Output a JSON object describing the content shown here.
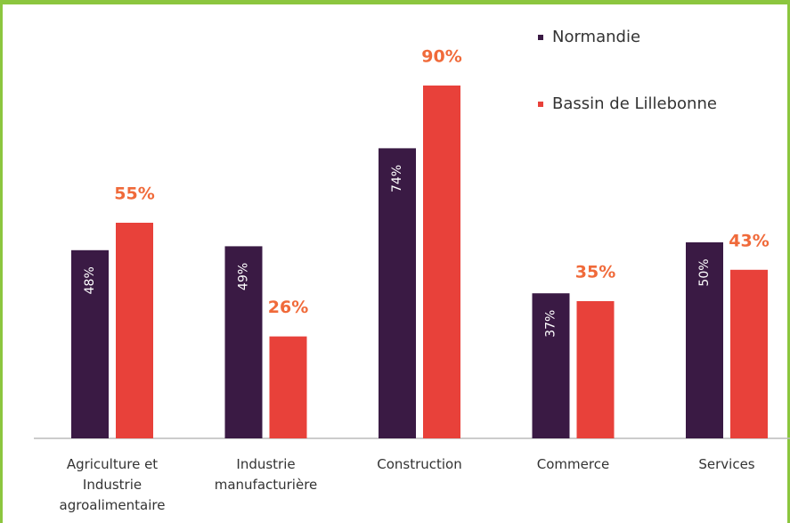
{
  "chart_data": {
    "type": "bar",
    "categories": [
      "Agriculture et Industrie agroalimentaire",
      "Industrie manufacturière",
      "Construction",
      "Commerce",
      "Services"
    ],
    "series": [
      {
        "name": "Normandie",
        "color": "#3a1a44",
        "values": [
          48,
          49,
          74,
          37,
          50
        ],
        "value_labels": [
          "48%",
          "49%",
          "74%",
          "37%",
          "50%"
        ]
      },
      {
        "name": "Bassin de Lillebonne",
        "color": "#e8413a",
        "values": [
          55,
          26,
          90,
          35,
          43
        ],
        "value_labels": [
          "55%",
          "26%",
          "90%",
          "35%",
          "43%"
        ]
      }
    ],
    "ylim": [
      0,
      100
    ],
    "legend": "top-right"
  }
}
